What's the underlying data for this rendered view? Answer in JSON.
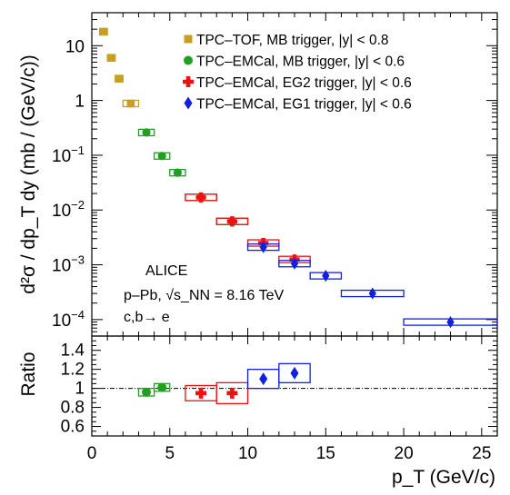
{
  "chart_data": [
    {
      "type": "scatter",
      "panel": "upper",
      "yscale": "log",
      "ylabel": "d²σ / dp_T dy (mb / (GeV/c))",
      "xlim": [
        0,
        26
      ],
      "ylim": [
        5e-05,
        40
      ],
      "yticks": [
        {
          "value": 0.0001,
          "base": "10",
          "exp": "−4"
        },
        {
          "value": 0.001,
          "base": "10",
          "exp": "−3"
        },
        {
          "value": 0.01,
          "base": "10",
          "exp": "−2"
        },
        {
          "value": 0.1,
          "base": "10",
          "exp": "−1"
        },
        {
          "value": 1,
          "base": "1",
          "exp": ""
        },
        {
          "value": 10,
          "base": "10",
          "exp": ""
        }
      ],
      "legend_position": "top-right",
      "annotations": [
        "ALICE",
        "p–Pb, √s_NN = 8.16 TeV",
        "c,b→ e"
      ],
      "series": [
        {
          "name": "TPC–TOF, MB trigger, |y| < 0.8",
          "marker": "square",
          "color": "#c8a020",
          "points": [
            {
              "x": 0.75,
              "xerr": 0.25,
              "y": 18
            },
            {
              "x": 1.25,
              "xerr": 0.25,
              "y": 6
            },
            {
              "x": 1.75,
              "xerr": 0.25,
              "y": 2.5
            },
            {
              "x": 2.5,
              "xerr": 0.5,
              "y": 0.88
            }
          ]
        },
        {
          "name": "TPC–EMCal, MB trigger, |y| < 0.6",
          "marker": "circle",
          "color": "#20a020",
          "points": [
            {
              "x": 3.5,
              "xerr": 0.5,
              "y": 0.26
            },
            {
              "x": 4.5,
              "xerr": 0.5,
              "y": 0.097
            },
            {
              "x": 5.5,
              "xerr": 0.5,
              "y": 0.048
            },
            {
              "x": 7.0,
              "xerr": 1.0,
              "y": 0.017
            },
            {
              "x": 9.0,
              "xerr": 1.0,
              "y": 0.0062
            }
          ]
        },
        {
          "name": "TPC–EMCal, EG2 trigger, |y| < 0.6",
          "marker": "cross",
          "color": "#ee1111",
          "points": [
            {
              "x": 7.0,
              "xerr": 1.0,
              "y": 0.017
            },
            {
              "x": 9.0,
              "xerr": 1.0,
              "y": 0.0062
            },
            {
              "x": 11.0,
              "xerr": 1.0,
              "y": 0.0025
            },
            {
              "x": 13.0,
              "xerr": 1.0,
              "y": 0.00125
            }
          ]
        },
        {
          "name": "TPC–EMCal, EG1 trigger, |y| < 0.6",
          "marker": "diamond",
          "color": "#1020dd",
          "points": [
            {
              "x": 11.0,
              "xerr": 1.0,
              "y": 0.0021
            },
            {
              "x": 13.0,
              "xerr": 1.0,
              "y": 0.00105
            },
            {
              "x": 15.0,
              "xerr": 1.0,
              "y": 0.00063
            },
            {
              "x": 18.0,
              "xerr": 2.0,
              "y": 0.0003
            },
            {
              "x": 23.0,
              "xerr": 3.0,
              "y": 9e-05
            }
          ]
        }
      ]
    },
    {
      "type": "scatter",
      "panel": "lower",
      "ylabel": "Ratio",
      "xlabel": "p_T (GeV/c)",
      "xlim": [
        0,
        26
      ],
      "ylim": [
        0.5,
        1.55
      ],
      "xticks": [
        0,
        5,
        10,
        15,
        20,
        25
      ],
      "xtick_labels": [
        "0",
        "5",
        "10",
        "15",
        "20",
        "25"
      ],
      "yticks": [
        0.6,
        0.8,
        1.0,
        1.2,
        1.4
      ],
      "ytick_labels": [
        "0.6",
        "0.8",
        "1",
        "1.2",
        "1.4"
      ],
      "reference_line": 1,
      "series": [
        {
          "marker": "circle",
          "color": "#20a020",
          "points": [
            {
              "x": 3.5,
              "xerr": 0.5,
              "y": 0.96,
              "syst": 0.04
            },
            {
              "x": 4.5,
              "xerr": 0.5,
              "y": 1.01,
              "syst": 0.04
            }
          ]
        },
        {
          "marker": "cross",
          "color": "#ee1111",
          "points": [
            {
              "x": 7.0,
              "xerr": 1.0,
              "y": 0.95,
              "syst": 0.08
            },
            {
              "x": 9.0,
              "xerr": 1.0,
              "y": 0.95,
              "syst": 0.11
            }
          ]
        },
        {
          "marker": "diamond",
          "color": "#1020dd",
          "points": [
            {
              "x": 11.0,
              "xerr": 1.0,
              "y": 1.1,
              "syst": 0.1
            },
            {
              "x": 13.0,
              "xerr": 1.0,
              "y": 1.16,
              "syst": 0.1
            }
          ]
        }
      ]
    }
  ]
}
